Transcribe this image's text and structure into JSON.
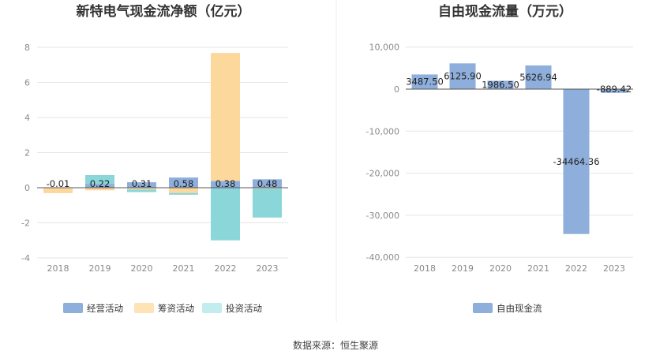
{
  "source_text": "数据来源：恒生聚源",
  "colors": {
    "operating": "#8eaedb",
    "financing": "#fdd89c",
    "investing": "#8ad6d9",
    "fcf": "#8eaedb"
  },
  "chart_data": [
    {
      "type": "bar",
      "stacked": true,
      "title": "新特电气现金流净额（亿元）",
      "categories": [
        "2018",
        "2019",
        "2020",
        "2021",
        "2022",
        "2023"
      ],
      "yticks": [
        "8",
        "6",
        "4",
        "2",
        "0",
        "-2",
        "-4"
      ],
      "ylim": [
        -4,
        8
      ],
      "grid": true,
      "legend_position": "bottom",
      "series": [
        {
          "name": "经营活动",
          "values": [
            -0.01,
            0.22,
            0.31,
            0.58,
            0.38,
            0.48
          ],
          "labels": [
            "-0.01",
            "0.22",
            "0.31",
            "0.58",
            "0.38",
            "0.48"
          ]
        },
        {
          "name": "筹资活动",
          "values": [
            -0.3,
            -0.15,
            -0.1,
            -0.3,
            7.3,
            -0.05
          ]
        },
        {
          "name": "投资活动",
          "values": [
            0.0,
            0.5,
            -0.15,
            -0.1,
            -3.0,
            -1.65
          ]
        }
      ]
    },
    {
      "type": "bar",
      "title": "自由现金流量（万元）",
      "categories": [
        "2018",
        "2019",
        "2020",
        "2021",
        "2022",
        "2023"
      ],
      "yticks": [
        "10,000",
        "0",
        "-10,000",
        "-20,000",
        "-30,000",
        "-40,000"
      ],
      "ylim": [
        -40000,
        10000
      ],
      "grid": true,
      "legend_position": "bottom",
      "series": [
        {
          "name": "自由现金流",
          "values": [
            3487.5,
            6125.9,
            1986.5,
            5626.94,
            -34464.36,
            -889.42
          ],
          "labels": [
            "3487.50",
            "6125.90",
            "1986.50",
            "5626.94",
            "-34464.36",
            "-889.42"
          ]
        }
      ]
    }
  ]
}
